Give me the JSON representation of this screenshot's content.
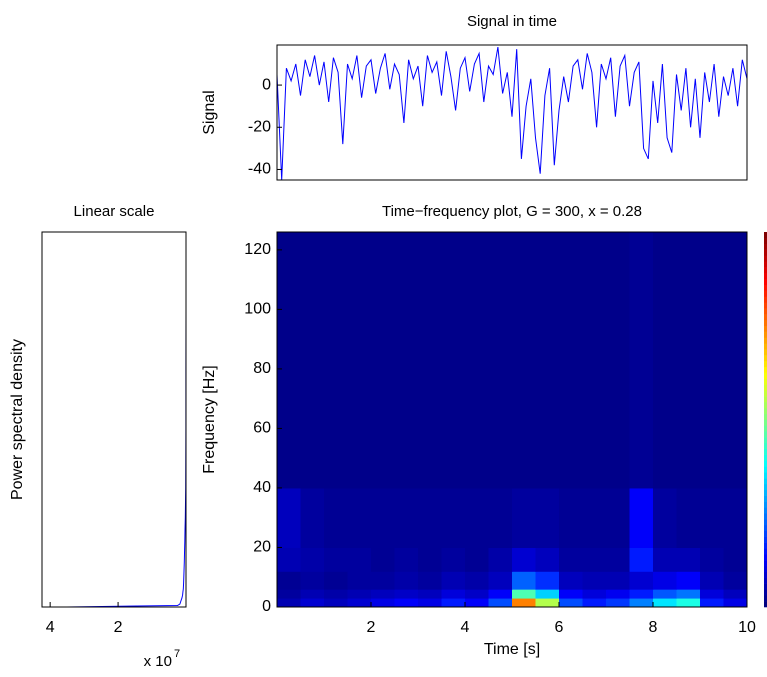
{
  "chart_data": [
    {
      "type": "line",
      "title": "Signal in time",
      "y_label": "Signal",
      "color": "#0000ff",
      "x": [
        0,
        0.1,
        0.2,
        0.3,
        0.4,
        0.5,
        0.6,
        0.7,
        0.8,
        0.9,
        1,
        1.1,
        1.2,
        1.3,
        1.4,
        1.5,
        1.6,
        1.7,
        1.8,
        1.9,
        2,
        2.1,
        2.2,
        2.3,
        2.4,
        2.5,
        2.6,
        2.7,
        2.8,
        2.9,
        3,
        3.1,
        3.2,
        3.3,
        3.4,
        3.5,
        3.6,
        3.7,
        3.8,
        3.9,
        4,
        4.1,
        4.2,
        4.3,
        4.4,
        4.5,
        4.6,
        4.7,
        4.8,
        4.9,
        5,
        5.1,
        5.2,
        5.3,
        5.4,
        5.5,
        5.6,
        5.7,
        5.8,
        5.9,
        6,
        6.1,
        6.2,
        6.3,
        6.4,
        6.5,
        6.6,
        6.7,
        6.8,
        6.9,
        7,
        7.1,
        7.2,
        7.3,
        7.4,
        7.5,
        7.6,
        7.7,
        7.8,
        7.9,
        8,
        8.1,
        8.2,
        8.3,
        8.4,
        8.5,
        8.6,
        8.7,
        8.8,
        8.9,
        9,
        9.1,
        9.2,
        9.3,
        9.4,
        9.5,
        9.6,
        9.7,
        9.8,
        9.9,
        10
      ],
      "values": [
        5,
        -45,
        8,
        2,
        10,
        -5,
        12,
        4,
        14,
        0,
        11,
        -8,
        13,
        6,
        -28,
        10,
        3,
        14,
        -6,
        9,
        12,
        -4,
        8,
        15,
        -2,
        10,
        5,
        -18,
        12,
        3,
        9,
        -10,
        14,
        6,
        11,
        -5,
        16,
        4,
        -12,
        8,
        13,
        -3,
        10,
        15,
        -8,
        9,
        5,
        18,
        -4,
        6,
        -15,
        17,
        -35,
        -10,
        3,
        -25,
        -42,
        -5,
        8,
        -38,
        -12,
        4,
        -8,
        9,
        12,
        -2,
        15,
        6,
        -20,
        10,
        3,
        13,
        -15,
        9,
        14,
        -10,
        6,
        11,
        -30,
        -35,
        2,
        -18,
        10,
        -25,
        -32,
        5,
        -12,
        8,
        -20,
        3,
        -25,
        6,
        -8,
        10,
        -15,
        4,
        -5,
        8,
        -10,
        12,
        3
      ],
      "xlim": [
        0,
        10
      ],
      "ylim": [
        -45,
        19
      ],
      "yticks": [
        -40,
        -20,
        0
      ]
    },
    {
      "type": "line",
      "orientation": "horizontal",
      "title": "Linear scale",
      "y_label": "Power spectral density",
      "color": "#0000ff",
      "y": [
        0,
        0.5,
        1,
        2,
        3,
        4,
        5,
        6,
        8,
        10,
        12,
        15,
        18,
        22,
        26,
        30,
        35,
        40,
        50,
        60,
        80,
        100,
        126
      ],
      "values": [
        35000000,
        2500000,
        1800000,
        1500000,
        1200000,
        1000000,
        900000,
        800000,
        700000,
        650000,
        600000,
        500000,
        450000,
        350000,
        300000,
        200000,
        150000,
        100000,
        60000,
        40000,
        20000,
        10000,
        5000
      ],
      "xlim": [
        42400000,
        0
      ],
      "ylim": [
        0,
        126
      ],
      "xticks": [
        {
          "value": 40000000,
          "label": "4"
        },
        {
          "value": 20000000,
          "label": "2"
        }
      ],
      "x_multiplier": {
        "base": "x 10",
        "exponent": "7"
      }
    },
    {
      "type": "heatmap",
      "title": "Time−frequency plot, G = 300, x = 0.28",
      "x_label": "Time [s]",
      "y_label": "Frequency [Hz]",
      "colormap": "jet",
      "clim": [
        0,
        1
      ],
      "colorbar": true,
      "x_bins": [
        0,
        0.5,
        1,
        1.5,
        2,
        2.5,
        3,
        3.5,
        4,
        4.5,
        5,
        5.5,
        6,
        6.5,
        7,
        7.5,
        8,
        8.5,
        9,
        9.5,
        10
      ],
      "y_bins": [
        0,
        3,
        6,
        12,
        20,
        40,
        126
      ],
      "values": [
        [
          0.05,
          0.08,
          0.06,
          0.08,
          0.1,
          0.12,
          0.1,
          0.15,
          0.12,
          0.2,
          0.75,
          0.55,
          0.2,
          0.15,
          0.18,
          0.25,
          0.35,
          0.4,
          0.15,
          0.1
        ],
        [
          0.03,
          0.05,
          0.04,
          0.05,
          0.06,
          0.07,
          0.06,
          0.09,
          0.07,
          0.12,
          0.45,
          0.33,
          0.12,
          0.09,
          0.11,
          0.15,
          0.21,
          0.24,
          0.09,
          0.06
        ],
        [
          0.02,
          0.03,
          0.02,
          0.03,
          0.03,
          0.04,
          0.03,
          0.05,
          0.04,
          0.06,
          0.22,
          0.17,
          0.06,
          0.05,
          0.05,
          0.08,
          0.1,
          0.12,
          0.05,
          0.03
        ],
        [
          0.05,
          0.04,
          0.03,
          0.03,
          0.02,
          0.03,
          0.02,
          0.03,
          0.02,
          0.04,
          0.08,
          0.06,
          0.03,
          0.03,
          0.03,
          0.15,
          0.05,
          0.05,
          0.03,
          0.02
        ],
        [
          0.06,
          0.03,
          0.02,
          0.02,
          0.02,
          0.02,
          0.02,
          0.02,
          0.02,
          0.02,
          0.03,
          0.03,
          0.02,
          0.02,
          0.02,
          0.12,
          0.03,
          0.02,
          0.02,
          0.02
        ],
        [
          0.01,
          0.01,
          0.01,
          0.01,
          0.01,
          0.01,
          0.01,
          0.01,
          0.01,
          0.01,
          0.01,
          0.01,
          0.01,
          0.01,
          0.01,
          0.02,
          0.01,
          0.01,
          0.01,
          0.01
        ]
      ],
      "xlim": [
        0,
        10
      ],
      "ylim": [
        0,
        126
      ],
      "xticks": [
        2,
        4,
        6,
        8,
        10
      ],
      "yticks": [
        0,
        20,
        40,
        60,
        80,
        100,
        120
      ]
    }
  ]
}
